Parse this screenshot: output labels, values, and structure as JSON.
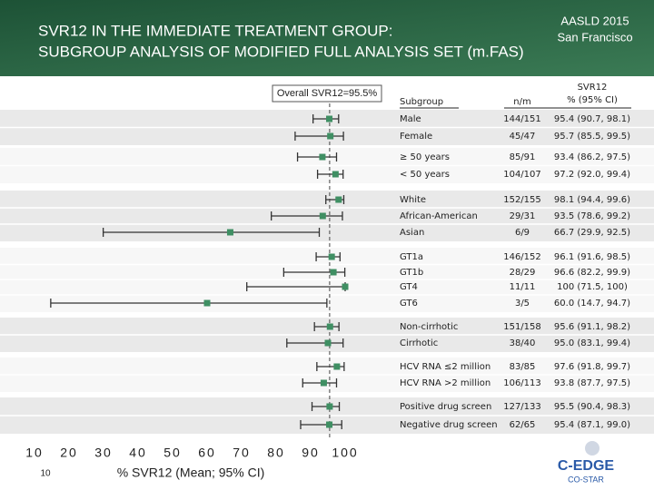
{
  "header": {
    "title_lines": [
      "SVR12 IN THE IMMEDIATE TREATMENT GROUP:",
      "SUBGROUP ANALYSIS OF MODIFIED FULL ANALYSIS SET (m.FAS)"
    ],
    "meeting": "AASLD 2015",
    "location": "San Francisco"
  },
  "chart_data": {
    "type": "forest",
    "overall_label": "Overall SVR12=95.5%",
    "overall": 95.5,
    "columns": [
      "Subgroup",
      "n/m",
      "SVR12",
      "% (95% CI)"
    ],
    "categories": [
      "Male",
      "Female",
      "≥ 50 years",
      "< 50 years",
      "White",
      "African-American",
      "Asian",
      "GT1a",
      "GT1b",
      "GT4",
      "GT6",
      "Non-cirrhotic",
      "Cirrhotic",
      "HCV RNA ≤2 million",
      "HCV RNA >2 million",
      "Positive drug screen",
      "Negative drug screen"
    ],
    "n_m": [
      "144/151",
      "45/47",
      "85/91",
      "104/107",
      "152/155",
      "29/31",
      "6/9",
      "146/152",
      "28/29",
      "11/11",
      "3/5",
      "151/158",
      "38/40",
      "83/85",
      "106/113",
      "127/133",
      "62/65"
    ],
    "values": [
      95.4,
      95.7,
      93.4,
      97.2,
      98.1,
      93.5,
      66.7,
      96.1,
      96.6,
      100,
      60.0,
      95.6,
      95.0,
      97.6,
      93.8,
      95.5,
      95.4
    ],
    "lower": [
      90.7,
      85.5,
      86.2,
      92.0,
      94.4,
      78.6,
      29.9,
      91.6,
      82.2,
      71.5,
      14.7,
      91.1,
      83.1,
      91.8,
      87.7,
      90.4,
      87.1
    ],
    "upper": [
      98.1,
      99.5,
      97.5,
      99.4,
      99.6,
      99.2,
      92.5,
      98.5,
      99.9,
      100,
      94.7,
      98.2,
      99.4,
      99.7,
      97.5,
      98.3,
      99.0
    ],
    "value_labels": [
      "95.4 (90.7, 98.1)",
      "95.7 (85.5, 99.5)",
      "93.4 (86.2, 97.5)",
      "97.2 (92.0, 99.4)",
      "98.1 (94.4, 99.6)",
      "93.5 (78.6, 99.2)",
      "66.7 (29.9, 92.5)",
      "96.1 (91.6, 98.5)",
      "96.6 (82.2, 99.9)",
      "100 (71.5, 100)",
      "60.0 (14.7, 94.7)",
      "95.6 (91.1, 98.2)",
      "95.0 (83.1, 99.4)",
      "97.6 (91.8, 99.7)",
      "93.8 (87.7, 97.5)",
      "95.5 (90.4, 98.3)",
      "95.4 (87.1, 99.0)"
    ],
    "color": "#3f8f63",
    "xlim": [
      10,
      100
    ],
    "xticks": [
      10,
      20,
      30,
      40,
      50,
      60,
      70,
      80,
      90,
      100
    ],
    "xlabel": "% SVR12 (Mean; 95% CI)"
  },
  "footer": {
    "slide_number": "10",
    "logo": "C-EDGE",
    "logo_sub": "CO-STAR"
  }
}
